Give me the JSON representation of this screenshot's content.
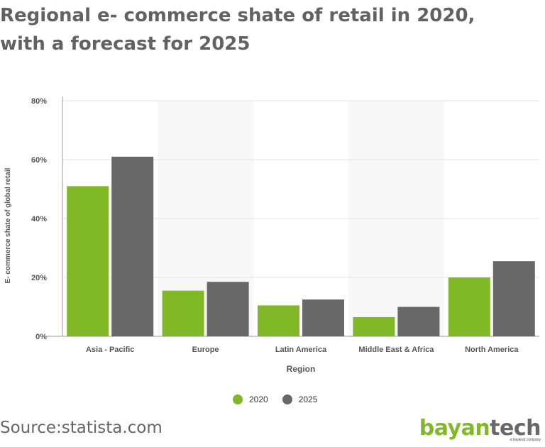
{
  "header": {
    "title_line1": "Regional e- commerce shate of retail in 2020,",
    "title_line2": "with a forecast for 2025"
  },
  "chart_data": {
    "type": "bar",
    "title": "Regional e- commerce shate of retail in 2020, with a forecast for 2025",
    "xlabel": "Region",
    "ylabel": "E- commerce shate of global retail",
    "categories": [
      "Asia - Pacific",
      "Europe",
      "Latin America",
      "Middle East & Africa",
      "North America"
    ],
    "series": [
      {
        "name": "2020",
        "color": "#80b828",
        "values": [
          51,
          15.5,
          10.5,
          6.5,
          20
        ]
      },
      {
        "name": "2025",
        "color": "#686868",
        "values": [
          61,
          18.5,
          12.5,
          10,
          25.5
        ]
      }
    ],
    "ylim": [
      0,
      80
    ],
    "yticks": [
      0,
      20,
      40,
      60,
      80
    ],
    "ytick_labels": [
      "0%",
      "20%",
      "40%",
      "60%",
      "80%"
    ],
    "grid": true,
    "legend_position": "bottom"
  },
  "footer": {
    "source": "Source:statista.com",
    "brand_part1": "bayan",
    "brand_part2": "tech",
    "brand_tagline": "a bayanat company",
    "brand_color1": "#80b828",
    "brand_color2": "#686868"
  }
}
